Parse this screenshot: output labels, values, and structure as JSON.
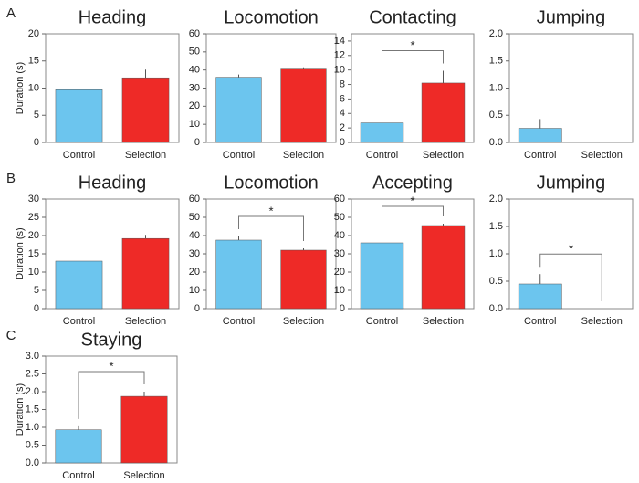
{
  "chart_data": [
    {
      "type": "bar",
      "panel": "A",
      "title": "Heading",
      "ylabel": "Duration (s)",
      "categories": [
        "Control",
        "Selection"
      ],
      "values": [
        9.7,
        11.9
      ],
      "errors": [
        1.4,
        1.5
      ],
      "colors": [
        "#6cc5ee",
        "#ee2a27"
      ],
      "ylim": [
        0,
        20
      ],
      "yticks": [
        0,
        5,
        10,
        15,
        20
      ]
    },
    {
      "type": "bar",
      "title": "Locomotion",
      "categories": [
        "Control",
        "Selection"
      ],
      "values": [
        36,
        40.5
      ],
      "errors": [
        1.5,
        1
      ],
      "colors": [
        "#6cc5ee",
        "#ee2a27"
      ],
      "ylim": [
        0,
        60
      ],
      "yticks": [
        0,
        10,
        20,
        30,
        40,
        50,
        60
      ]
    },
    {
      "type": "bar",
      "title": "Contacting",
      "categories": [
        "Control",
        "Selection"
      ],
      "values": [
        2.7,
        8.2
      ],
      "errors": [
        1.7,
        1.7
      ],
      "colors": [
        "#6cc5ee",
        "#ee2a27"
      ],
      "ylim": [
        0,
        15
      ],
      "yticks": [
        0,
        2,
        4,
        6,
        8,
        10,
        12,
        14
      ],
      "significance": "*"
    },
    {
      "type": "bar",
      "title": "Jumping",
      "categories": [
        "Control",
        "Selection"
      ],
      "values": [
        0.26,
        0
      ],
      "errors": [
        0.17,
        0
      ],
      "colors": [
        "#6cc5ee",
        "#ee2a27"
      ],
      "ylim": [
        0,
        2
      ],
      "yticks": [
        {
          "value": 0,
          "label": "0.0"
        },
        0.5,
        {
          "value": 1,
          "label": "1.0"
        },
        1.5,
        {
          "value": 2,
          "label": "2.0"
        }
      ]
    },
    {
      "type": "bar",
      "panel": "B",
      "title": "Heading",
      "ylabel": "Duration (s)",
      "categories": [
        "Control",
        "Selection"
      ],
      "values": [
        13,
        19.2
      ],
      "errors": [
        2.5,
        1
      ],
      "colors": [
        "#6cc5ee",
        "#ee2a27"
      ],
      "ylim": [
        0,
        30
      ],
      "yticks": [
        0,
        5,
        10,
        15,
        20,
        25,
        30
      ]
    },
    {
      "type": "bar",
      "title": "Locomotion",
      "categories": [
        "Control",
        "Selection"
      ],
      "values": [
        37.5,
        32
      ],
      "errors": [
        2,
        1
      ],
      "colors": [
        "#6cc5ee",
        "#ee2a27"
      ],
      "ylim": [
        0,
        60
      ],
      "yticks": [
        0,
        10,
        20,
        30,
        40,
        50,
        60
      ],
      "significance": "*"
    },
    {
      "type": "bar",
      "title": "Accepting",
      "categories": [
        "Control",
        "Selection"
      ],
      "values": [
        36,
        45.5
      ],
      "errors": [
        1.5,
        1
      ],
      "colors": [
        "#6cc5ee",
        "#ee2a27"
      ],
      "ylim": [
        0,
        60
      ],
      "yticks": [
        0,
        10,
        20,
        30,
        40,
        50,
        60
      ],
      "significance": "*"
    },
    {
      "type": "bar",
      "title": "Jumping",
      "categories": [
        "Control",
        "Selection"
      ],
      "values": [
        0.45,
        0
      ],
      "errors": [
        0.18,
        0
      ],
      "colors": [
        "#6cc5ee",
        "#ee2a27"
      ],
      "ylim": [
        0,
        2
      ],
      "yticks": [
        {
          "value": 0,
          "label": "0.0"
        },
        0.5,
        {
          "value": 1,
          "label": "1.0"
        },
        1.5,
        {
          "value": 2,
          "label": "2.0"
        }
      ],
      "significance": "*"
    },
    {
      "type": "bar",
      "panel": "C",
      "title": "Staying",
      "ylabel": "Duration (s)",
      "categories": [
        "Control",
        "Selection"
      ],
      "values": [
        0.93,
        1.87
      ],
      "errors": [
        0.1,
        0.13
      ],
      "colors": [
        "#6cc5ee",
        "#ee2a27"
      ],
      "ylim": [
        0,
        3
      ],
      "yticks": [
        {
          "value": 0,
          "label": "0.0"
        },
        0.5,
        {
          "value": 1,
          "label": "1.0"
        },
        1.5,
        {
          "value": 2,
          "label": "2.0"
        },
        2.5,
        {
          "value": 3,
          "label": "3.0"
        }
      ],
      "significance": "*"
    }
  ]
}
